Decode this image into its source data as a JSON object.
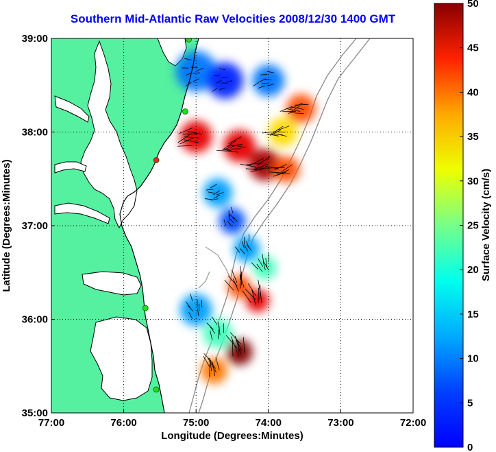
{
  "title": "Southern Mid-Atlantic Raw Velocities 2008/12/30 1400 GMT",
  "map": {
    "xlabel": "Longitude (Degrees:Minutes)",
    "ylabel": "Latitude (Degrees:Minutes)",
    "lon_range": [
      -77,
      -72
    ],
    "lat_range": [
      35,
      39
    ],
    "lon_ticks": [
      "77:00",
      "76:00",
      "75:00",
      "74:00",
      "73:00",
      "72:00"
    ],
    "lat_ticks": [
      "35:00",
      "36:00",
      "37:00",
      "38:00",
      "39:00"
    ],
    "grid": "dotted",
    "land_color": "#55f0a0",
    "coastline_color": "#000000",
    "isobath_color": "#888888",
    "station_color": "#22dd22",
    "station_alert_color": "#ee2222"
  },
  "colorbar": {
    "label": "Surface Velocity (cm/s)",
    "range": [
      0,
      50
    ],
    "ticks": [
      "0",
      "5",
      "10",
      "15",
      "20",
      "25",
      "30",
      "35",
      "40",
      "45",
      "50"
    ],
    "colormap": "jet"
  },
  "chart_data": {
    "type": "heatmap",
    "units": "cm/s",
    "stations": [
      {
        "lon": -75.1,
        "lat": 38.99,
        "status": "ok"
      },
      {
        "lon": -75.15,
        "lat": 38.22,
        "status": "ok"
      },
      {
        "lon": -75.55,
        "lat": 37.7,
        "status": "alert"
      },
      {
        "lon": -75.7,
        "lat": 36.12,
        "status": "ok"
      },
      {
        "lon": -75.55,
        "lat": 35.25,
        "status": "ok"
      }
    ],
    "speed_regions": [
      {
        "lon": -75.0,
        "lat": 38.65,
        "speed": 12,
        "radius": 0.28
      },
      {
        "lon": -74.6,
        "lat": 38.55,
        "speed": 8,
        "radius": 0.25
      },
      {
        "lon": -74.0,
        "lat": 38.55,
        "speed": 12,
        "radius": 0.22
      },
      {
        "lon": -73.55,
        "lat": 38.25,
        "speed": 40,
        "radius": 0.2
      },
      {
        "lon": -73.8,
        "lat": 38.0,
        "speed": 33,
        "radius": 0.2
      },
      {
        "lon": -75.0,
        "lat": 37.95,
        "speed": 45,
        "radius": 0.22
      },
      {
        "lon": -74.4,
        "lat": 37.85,
        "speed": 45,
        "radius": 0.22
      },
      {
        "lon": -74.05,
        "lat": 37.65,
        "speed": 48,
        "radius": 0.22
      },
      {
        "lon": -73.75,
        "lat": 37.6,
        "speed": 40,
        "radius": 0.18
      },
      {
        "lon": -74.7,
        "lat": 37.35,
        "speed": 14,
        "radius": 0.2
      },
      {
        "lon": -74.5,
        "lat": 37.05,
        "speed": 10,
        "radius": 0.18
      },
      {
        "lon": -74.3,
        "lat": 36.75,
        "speed": 14,
        "radius": 0.18
      },
      {
        "lon": -74.05,
        "lat": 36.55,
        "speed": 22,
        "radius": 0.16
      },
      {
        "lon": -74.4,
        "lat": 36.35,
        "speed": 40,
        "radius": 0.16
      },
      {
        "lon": -74.15,
        "lat": 36.2,
        "speed": 45,
        "radius": 0.16
      },
      {
        "lon": -75.0,
        "lat": 36.1,
        "speed": 14,
        "radius": 0.22
      },
      {
        "lon": -74.7,
        "lat": 35.85,
        "speed": 22,
        "radius": 0.2
      },
      {
        "lon": -74.4,
        "lat": 35.65,
        "speed": 50,
        "radius": 0.18
      },
      {
        "lon": -74.75,
        "lat": 35.45,
        "speed": 38,
        "radius": 0.18
      }
    ]
  }
}
